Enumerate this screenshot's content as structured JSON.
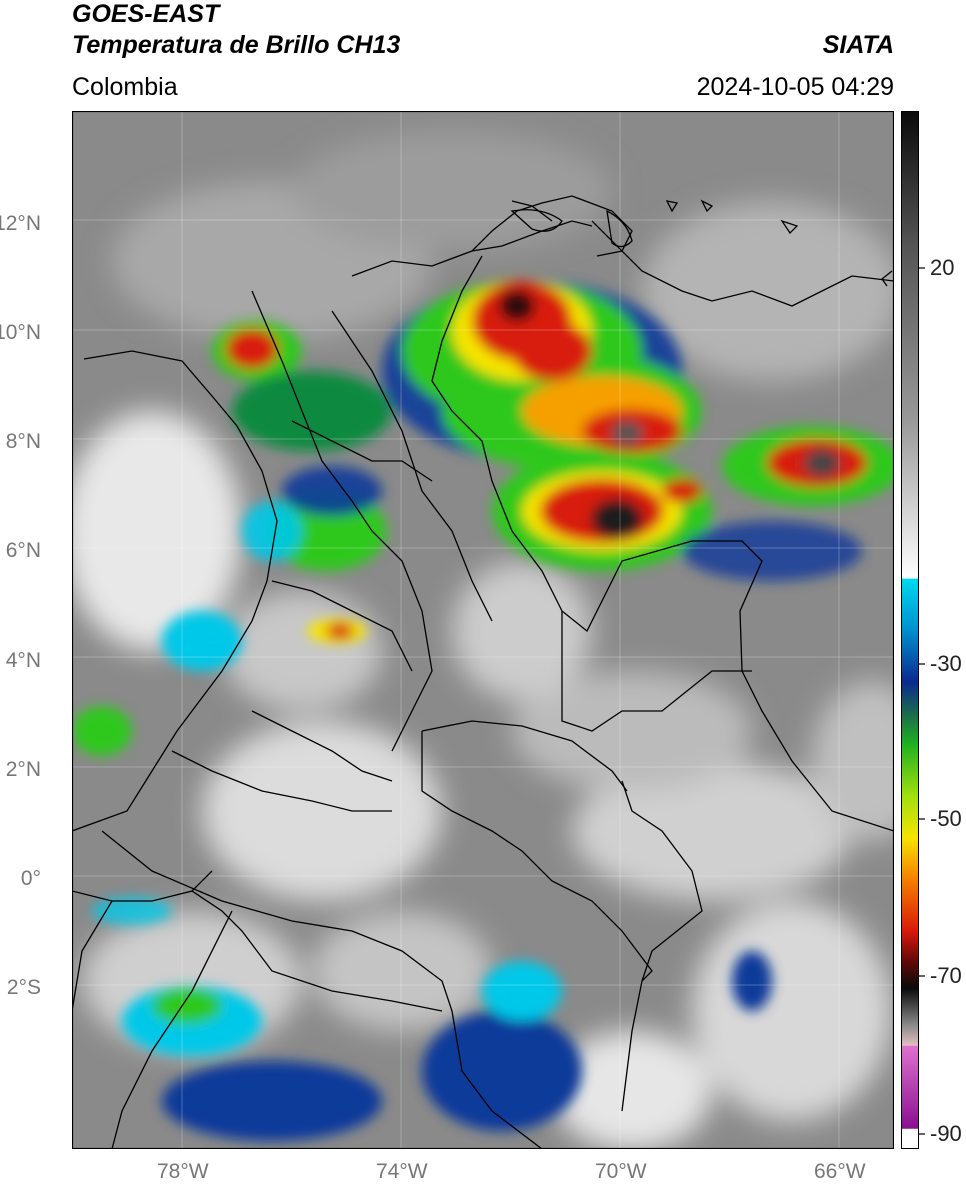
{
  "header": {
    "satellite": "GOES-EAST",
    "product": "Temperatura de Brillo CH13",
    "region": "Colombia",
    "agency": "SIATA",
    "timestamp": "2024-10-05 04:29"
  },
  "map": {
    "lon_range": [
      -80,
      -65
    ],
    "lat_range": [
      -5,
      14
    ],
    "lat_labels": [
      {
        "lat": 12,
        "label": "12°N"
      },
      {
        "lat": 10,
        "label": "10°N"
      },
      {
        "lat": 8,
        "label": "8°N"
      },
      {
        "lat": 6,
        "label": "6°N"
      },
      {
        "lat": 4,
        "label": "4°N"
      },
      {
        "lat": 2,
        "label": "2°N"
      },
      {
        "lat": 0,
        "label": "0°"
      },
      {
        "lat": -2,
        "label": "2°S"
      }
    ],
    "lon_labels": [
      {
        "lon": -78,
        "label": "78°W"
      },
      {
        "lon": -74,
        "label": "74°W"
      },
      {
        "lon": -70,
        "label": "70°W"
      },
      {
        "lon": -66,
        "label": "66°W"
      }
    ],
    "gridlines": true
  },
  "colorbar": {
    "range": [
      -92,
      34
    ],
    "ticks": [
      {
        "value": 20,
        "label": "20"
      },
      {
        "value": -30,
        "label": "-30"
      },
      {
        "value": -50,
        "label": "-50"
      },
      {
        "value": -70,
        "label": "-70"
      },
      {
        "value": -90,
        "label": "-90"
      }
    ],
    "colors": {
      "warm_gray": "#bdbdbd",
      "cyan": "#00c8e8",
      "blue": "#0a3a9a",
      "green": "#2ec81e",
      "yellow": "#f6e400",
      "red": "#d81a0a",
      "black": "#111111",
      "magenta": "#c040b0"
    }
  }
}
